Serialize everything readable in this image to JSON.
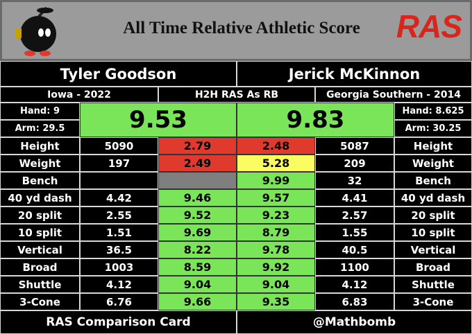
{
  "header": {
    "title": "All Time Relative Athletic Score",
    "logo_text": "RAS"
  },
  "players": {
    "left": {
      "name": "Tyler Goodson",
      "school": "Iowa - 2022",
      "hand": "Hand: 9",
      "arm": "Arm: 29.5",
      "ras": "9.53",
      "ras_color": "#7be55a"
    },
    "right": {
      "name": "Jerick McKinnon",
      "school": "Georgia Southern - 2014",
      "hand": "Hand: 8.625",
      "arm": "Arm: 30.25",
      "ras": "9.83",
      "ras_color": "#7be55a"
    }
  },
  "comparison_label": "H2H RAS As RB",
  "rows": [
    {
      "metric": "Height",
      "left_value": "5090",
      "left_score": "2.79",
      "left_color": "#e03a2e",
      "right_score": "2.48",
      "right_color": "#e03a2e",
      "right_value": "5087"
    },
    {
      "metric": "Weight",
      "left_value": "197",
      "left_score": "2.49",
      "left_color": "#e03a2e",
      "right_score": "5.28",
      "right_color": "#fbfb62",
      "right_value": "209"
    },
    {
      "metric": "Bench",
      "left_value": null,
      "left_score": null,
      "left_color": "#7f7f7f",
      "right_score": "9.99",
      "right_color": "#7be55a",
      "right_value": "32"
    },
    {
      "metric": "40 yd dash",
      "left_value": "4.42",
      "left_score": "9.46",
      "left_color": "#7be55a",
      "right_score": "9.57",
      "right_color": "#7be55a",
      "right_value": "4.41"
    },
    {
      "metric": "20 split",
      "left_value": "2.55",
      "left_score": "9.52",
      "left_color": "#7be55a",
      "right_score": "9.23",
      "right_color": "#7be55a",
      "right_value": "2.57"
    },
    {
      "metric": "10 split",
      "left_value": "1.51",
      "left_score": "9.69",
      "left_color": "#7be55a",
      "right_score": "8.79",
      "right_color": "#7be55a",
      "right_value": "1.55"
    },
    {
      "metric": "Vertical",
      "left_value": "36.5",
      "left_score": "8.22",
      "left_color": "#7be55a",
      "right_score": "9.78",
      "right_color": "#7be55a",
      "right_value": "40.5"
    },
    {
      "metric": "Broad",
      "left_value": "1003",
      "left_score": "8.59",
      "left_color": "#7be55a",
      "right_score": "9.92",
      "right_color": "#7be55a",
      "right_value": "1100"
    },
    {
      "metric": "Shuttle",
      "left_value": "4.12",
      "left_score": "9.04",
      "left_color": "#7be55a",
      "right_score": "9.04",
      "right_color": "#7be55a",
      "right_value": "4.12"
    },
    {
      "metric": "3-Cone",
      "left_value": "6.76",
      "left_score": "9.66",
      "left_color": "#7be55a",
      "right_score": "9.35",
      "right_color": "#7be55a",
      "right_value": "6.83"
    }
  ],
  "footer": {
    "left": "RAS Comparison Card",
    "right": "@Mathbomb"
  }
}
